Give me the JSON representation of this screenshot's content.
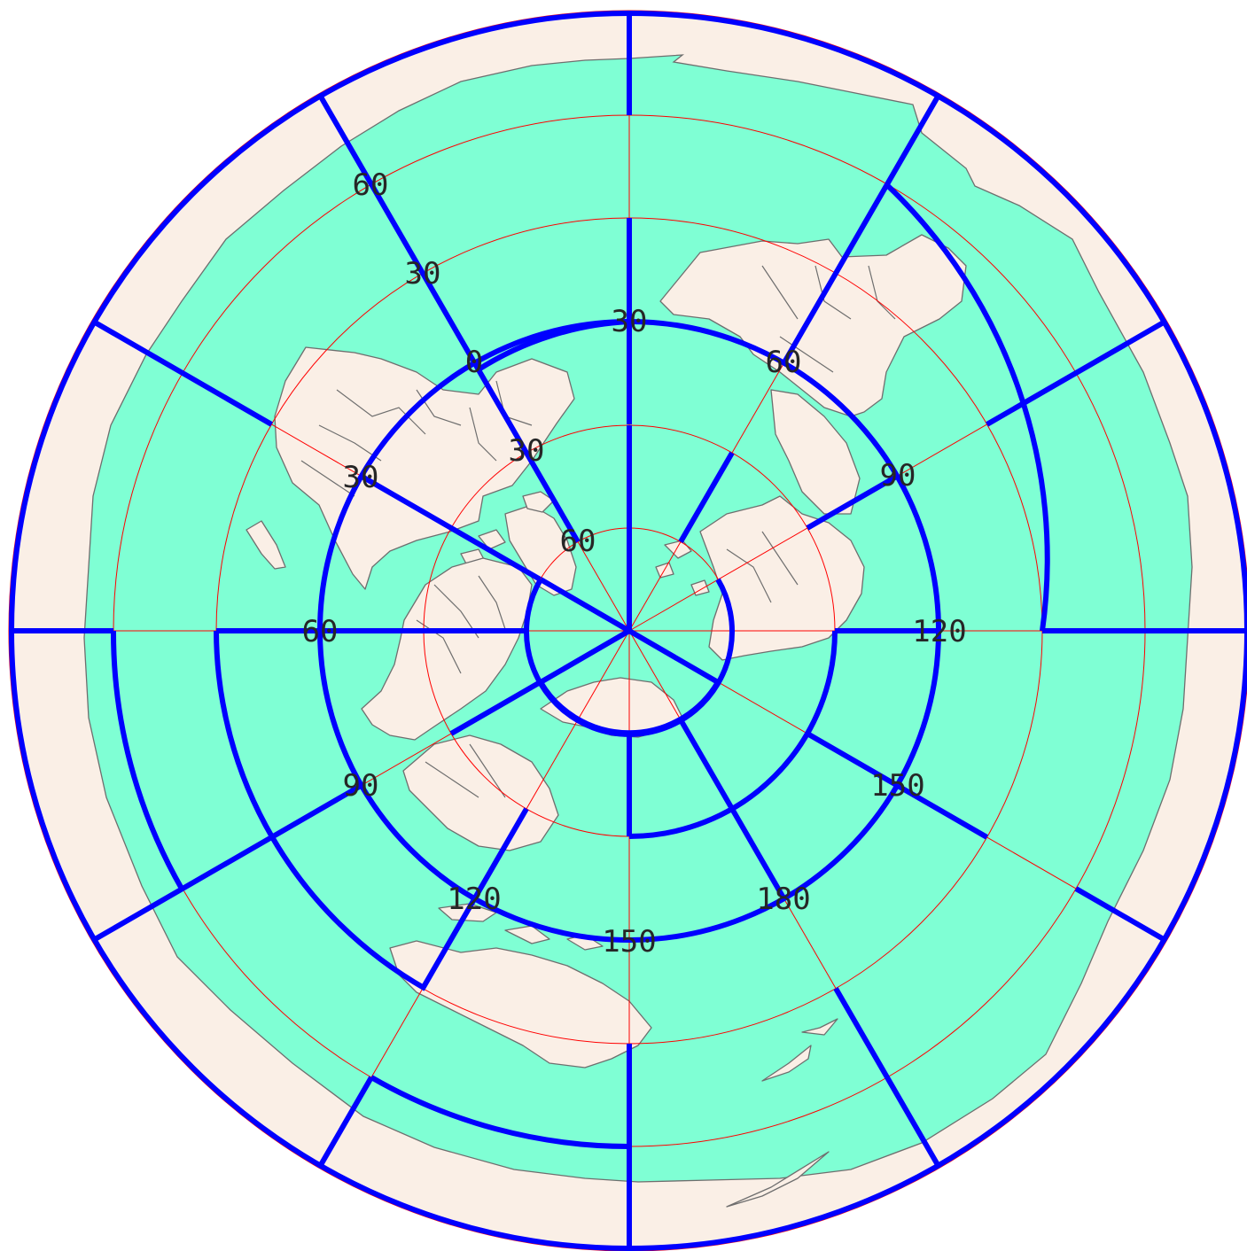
{
  "map": {
    "projection": "polar azimuthal (north pole centre)",
    "colors": {
      "ocean": "#7fffd4",
      "land": "#faefe6",
      "outside_tiles": "#faefe6",
      "coastline": "#6e6e6e",
      "graticule": "#ff0000",
      "tile_boundaries": "#0000ff",
      "labels": "#262626"
    },
    "graticule": {
      "latitude_circles": [
        75,
        60,
        45,
        30,
        15,
        0,
        -15
      ],
      "meridians_every_deg": 30
    },
    "tile_rings": [
      {
        "inner_lat": 90,
        "outer_lat": 75,
        "tiles": 3
      },
      {
        "inner_lat": 75,
        "outer_lat": 45,
        "tiles": 6
      },
      {
        "inner_lat": 45,
        "outer_lat": 15,
        "tiles": 12
      },
      {
        "inner_lat": 15,
        "outer_lat": -15,
        "tiles": 12
      },
      {
        "inner_lat": -15,
        "outer_lat": -30,
        "tiles": 6
      }
    ],
    "labels": [
      {
        "text": "60",
        "name": "label-ring2-lat-60"
      },
      {
        "text": "30",
        "name": "label-ring2-lon-30"
      },
      {
        "text": "0",
        "name": "label-ring2-lon-0"
      },
      {
        "text": "30",
        "name": "label-ring2-lat-30"
      },
      {
        "text": "60",
        "name": "label-ring2-lon-60"
      },
      {
        "text": "90",
        "name": "label-ring2-lon-90"
      },
      {
        "text": "120",
        "name": "label-ring2-lon-120"
      },
      {
        "text": "150",
        "name": "label-ring2-lon-150"
      },
      {
        "text": "180",
        "name": "label-ring2-lon-180"
      },
      {
        "text": "150",
        "name": "label-ring2-lon-150b"
      },
      {
        "text": "120",
        "name": "label-ring2-lon-120b"
      },
      {
        "text": "90",
        "name": "label-ring2-lon-90b"
      },
      {
        "text": "60",
        "name": "label-ring2-lon-60b"
      },
      {
        "text": "30",
        "name": "label-ring2-lon-30b"
      },
      {
        "text": "60",
        "name": "label-ring1-lon-60"
      }
    ]
  }
}
